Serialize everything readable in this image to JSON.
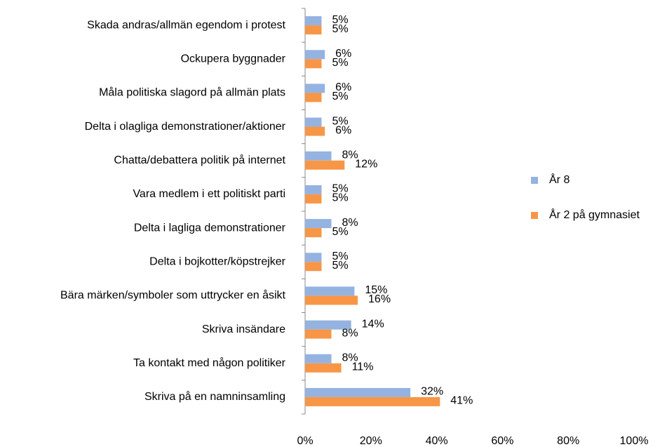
{
  "chart_data": {
    "type": "bar",
    "orientation": "horizontal",
    "categories": [
      "Skada andras/allmän egendom i protest",
      "Ockupera byggnader",
      "Måla politiska slagord på allmän plats",
      "Delta i olagliga demonstrationer/aktioner",
      "Chatta/debattera politik på internet",
      "Vara medlem i ett politiskt parti",
      "Delta i lagliga demonstrationer",
      "Delta i bojkotter/köpstrejker",
      "Bära märken/symboler som uttrycker en åsikt",
      "Skriva insändare",
      "Ta kontakt med någon politiker",
      "Skriva på en namninsamling"
    ],
    "series": [
      {
        "name": "År 8",
        "color": "#95b3e0",
        "values": [
          5,
          6,
          6,
          5,
          8,
          5,
          8,
          5,
          15,
          14,
          8,
          32
        ],
        "value_labels": [
          "5%",
          "6%",
          "6%",
          "5%",
          "8%",
          "5%",
          "8%",
          "5%",
          "15%",
          "14%",
          "8%",
          "32%"
        ]
      },
      {
        "name": "År 2 på gymnasiet",
        "color": "#f79646",
        "values": [
          5,
          5,
          5,
          6,
          12,
          5,
          5,
          5,
          16,
          8,
          11,
          41
        ],
        "value_labels": [
          "5%",
          "5%",
          "5%",
          "6%",
          "12%",
          "5%",
          "5%",
          "5%",
          "16%",
          "8%",
          "11%",
          "41%"
        ]
      }
    ],
    "xlim": [
      0,
      100
    ],
    "xticks": [
      {
        "value": 0,
        "label": "0%"
      },
      {
        "value": 20,
        "label": "20%"
      },
      {
        "value": 40,
        "label": "40%"
      },
      {
        "value": 60,
        "label": "60%"
      },
      {
        "value": 80,
        "label": "80%"
      },
      {
        "value": 100,
        "label": "100%"
      }
    ],
    "legend": "right"
  }
}
